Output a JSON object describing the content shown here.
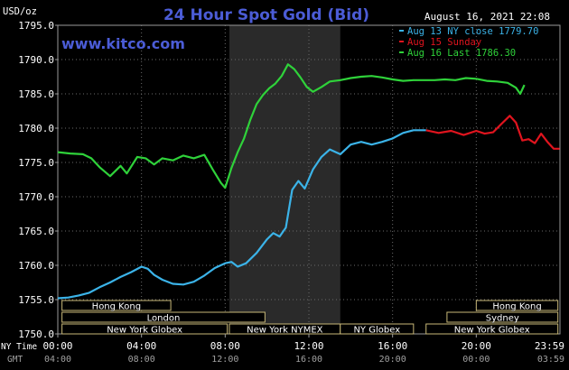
{
  "chart_data": {
    "type": "line",
    "title": "24 Hour Spot Gold (Bid)",
    "unit_label": "USD/oz",
    "timestamp": "August 16, 2021 22:08",
    "watermark": "www.kitco.com",
    "ylim": [
      1750,
      1795
    ],
    "yticks": [
      "1795.0",
      "1790.0",
      "1785.0",
      "1780.0",
      "1775.0",
      "1770.0",
      "1765.0",
      "1760.0",
      "1755.0",
      "1750.0"
    ],
    "ytick_values": [
      1795,
      1790,
      1785,
      1780,
      1775,
      1770,
      1765,
      1760,
      1755,
      1750
    ],
    "xlim": [
      0,
      24
    ],
    "xticks_ny": [
      "00:00",
      "04:00",
      "08:00",
      "12:00",
      "16:00",
      "20:00",
      "23:59"
    ],
    "xticks_gmt": [
      "04:00",
      "08:00",
      "12:00",
      "16:00",
      "20:00",
      "00:00",
      "03:59"
    ],
    "xtick_hours": [
      0,
      4,
      8,
      12,
      16,
      20,
      23.983
    ],
    "row_labels": {
      "ny": "NY Time",
      "gmt": "GMT"
    },
    "nymex_shade_hours": [
      8.2,
      13.5
    ],
    "sessions": [
      {
        "name": "Hong Kong",
        "start": 0.2,
        "end": 5.4,
        "row": 0
      },
      {
        "name": "London",
        "start": 0.2,
        "end": 9.9,
        "row": 1
      },
      {
        "name": "New York Globex",
        "start": 0.2,
        "end": 8.1,
        "row": 2
      },
      {
        "name": "New York NYMEX",
        "start": 8.2,
        "end": 13.5,
        "row": 2
      },
      {
        "name": "NY Globex",
        "start": 13.5,
        "end": 17.0,
        "row": 2
      },
      {
        "name": "Hong Kong",
        "start": 20.0,
        "end": 23.9,
        "row": 0
      },
      {
        "name": "Sydney",
        "start": 18.6,
        "end": 23.9,
        "row": 1
      },
      {
        "name": "New York Globex",
        "start": 17.6,
        "end": 23.9,
        "row": 2
      }
    ],
    "series": [
      {
        "name": "Aug 13 NY close 1779.70",
        "color": "#3bb3e8",
        "points": [
          [
            0,
            1755.2
          ],
          [
            0.5,
            1755.3
          ],
          [
            1,
            1755.6
          ],
          [
            1.5,
            1756.0
          ],
          [
            2,
            1756.8
          ],
          [
            2.5,
            1757.5
          ],
          [
            3,
            1758.3
          ],
          [
            3.5,
            1759.0
          ],
          [
            4,
            1759.8
          ],
          [
            4.3,
            1759.5
          ],
          [
            4.6,
            1758.6
          ],
          [
            5,
            1757.9
          ],
          [
            5.5,
            1757.3
          ],
          [
            6,
            1757.2
          ],
          [
            6.5,
            1757.6
          ],
          [
            7,
            1758.5
          ],
          [
            7.5,
            1759.6
          ],
          [
            8,
            1760.3
          ],
          [
            8.3,
            1760.5
          ],
          [
            8.6,
            1759.8
          ],
          [
            9,
            1760.3
          ],
          [
            9.5,
            1761.8
          ],
          [
            10,
            1763.8
          ],
          [
            10.3,
            1764.7
          ],
          [
            10.6,
            1764.2
          ],
          [
            10.9,
            1765.5
          ],
          [
            11.2,
            1771.0
          ],
          [
            11.5,
            1772.3
          ],
          [
            11.8,
            1771.2
          ],
          [
            12.2,
            1774.0
          ],
          [
            12.6,
            1775.8
          ],
          [
            13,
            1776.9
          ],
          [
            13.5,
            1776.2
          ],
          [
            14,
            1777.6
          ],
          [
            14.5,
            1778.0
          ],
          [
            15,
            1777.6
          ],
          [
            15.5,
            1778.0
          ],
          [
            16,
            1778.5
          ],
          [
            16.5,
            1779.3
          ],
          [
            17,
            1779.7
          ],
          [
            17.6,
            1779.7
          ]
        ]
      },
      {
        "name": "Aug 15 Sunday",
        "color": "#e0141e",
        "points": [
          [
            17.6,
            1779.7
          ],
          [
            18.2,
            1779.3
          ],
          [
            18.8,
            1779.6
          ],
          [
            19.4,
            1779.0
          ],
          [
            20,
            1779.6
          ],
          [
            20.4,
            1779.2
          ],
          [
            20.8,
            1779.4
          ],
          [
            21.2,
            1780.6
          ],
          [
            21.6,
            1781.8
          ],
          [
            21.9,
            1780.8
          ],
          [
            22.2,
            1778.2
          ],
          [
            22.5,
            1778.4
          ],
          [
            22.8,
            1777.8
          ],
          [
            23.1,
            1779.2
          ],
          [
            23.4,
            1778.0
          ],
          [
            23.7,
            1777.0
          ],
          [
            23.983,
            1777.0
          ]
        ]
      },
      {
        "name": "Aug 16 Last 1786.30",
        "color": "#2fd23a",
        "points": [
          [
            0,
            1776.5
          ],
          [
            0.6,
            1776.3
          ],
          [
            1.2,
            1776.2
          ],
          [
            1.6,
            1775.6
          ],
          [
            2,
            1774.3
          ],
          [
            2.5,
            1773.0
          ],
          [
            3,
            1774.5
          ],
          [
            3.3,
            1773.4
          ],
          [
            3.8,
            1775.8
          ],
          [
            4.2,
            1775.6
          ],
          [
            4.6,
            1774.7
          ],
          [
            5,
            1775.6
          ],
          [
            5.5,
            1775.3
          ],
          [
            6,
            1776.0
          ],
          [
            6.5,
            1775.6
          ],
          [
            7,
            1776.1
          ],
          [
            7.4,
            1774.0
          ],
          [
            7.8,
            1772.0
          ],
          [
            8,
            1771.3
          ],
          [
            8.3,
            1774.2
          ],
          [
            8.6,
            1776.5
          ],
          [
            8.9,
            1778.5
          ],
          [
            9.2,
            1781.2
          ],
          [
            9.5,
            1783.5
          ],
          [
            9.8,
            1784.8
          ],
          [
            10.1,
            1785.8
          ],
          [
            10.4,
            1786.5
          ],
          [
            10.7,
            1787.6
          ],
          [
            11,
            1789.3
          ],
          [
            11.3,
            1788.6
          ],
          [
            11.6,
            1787.4
          ],
          [
            11.9,
            1786.0
          ],
          [
            12.2,
            1785.3
          ],
          [
            12.6,
            1786.0
          ],
          [
            13,
            1786.8
          ],
          [
            13.5,
            1787.0
          ],
          [
            14,
            1787.3
          ],
          [
            14.5,
            1787.5
          ],
          [
            15,
            1787.6
          ],
          [
            15.5,
            1787.4
          ],
          [
            16,
            1787.1
          ],
          [
            16.5,
            1786.9
          ],
          [
            17,
            1787.0
          ],
          [
            17.5,
            1787.0
          ],
          [
            18,
            1787.0
          ],
          [
            18.5,
            1787.1
          ],
          [
            19,
            1787.0
          ],
          [
            19.5,
            1787.3
          ],
          [
            20,
            1787.2
          ],
          [
            20.5,
            1786.9
          ],
          [
            21,
            1786.8
          ],
          [
            21.5,
            1786.6
          ],
          [
            21.9,
            1785.9
          ],
          [
            22.1,
            1785.0
          ],
          [
            22.3,
            1786.3
          ]
        ]
      }
    ],
    "grid": true
  }
}
